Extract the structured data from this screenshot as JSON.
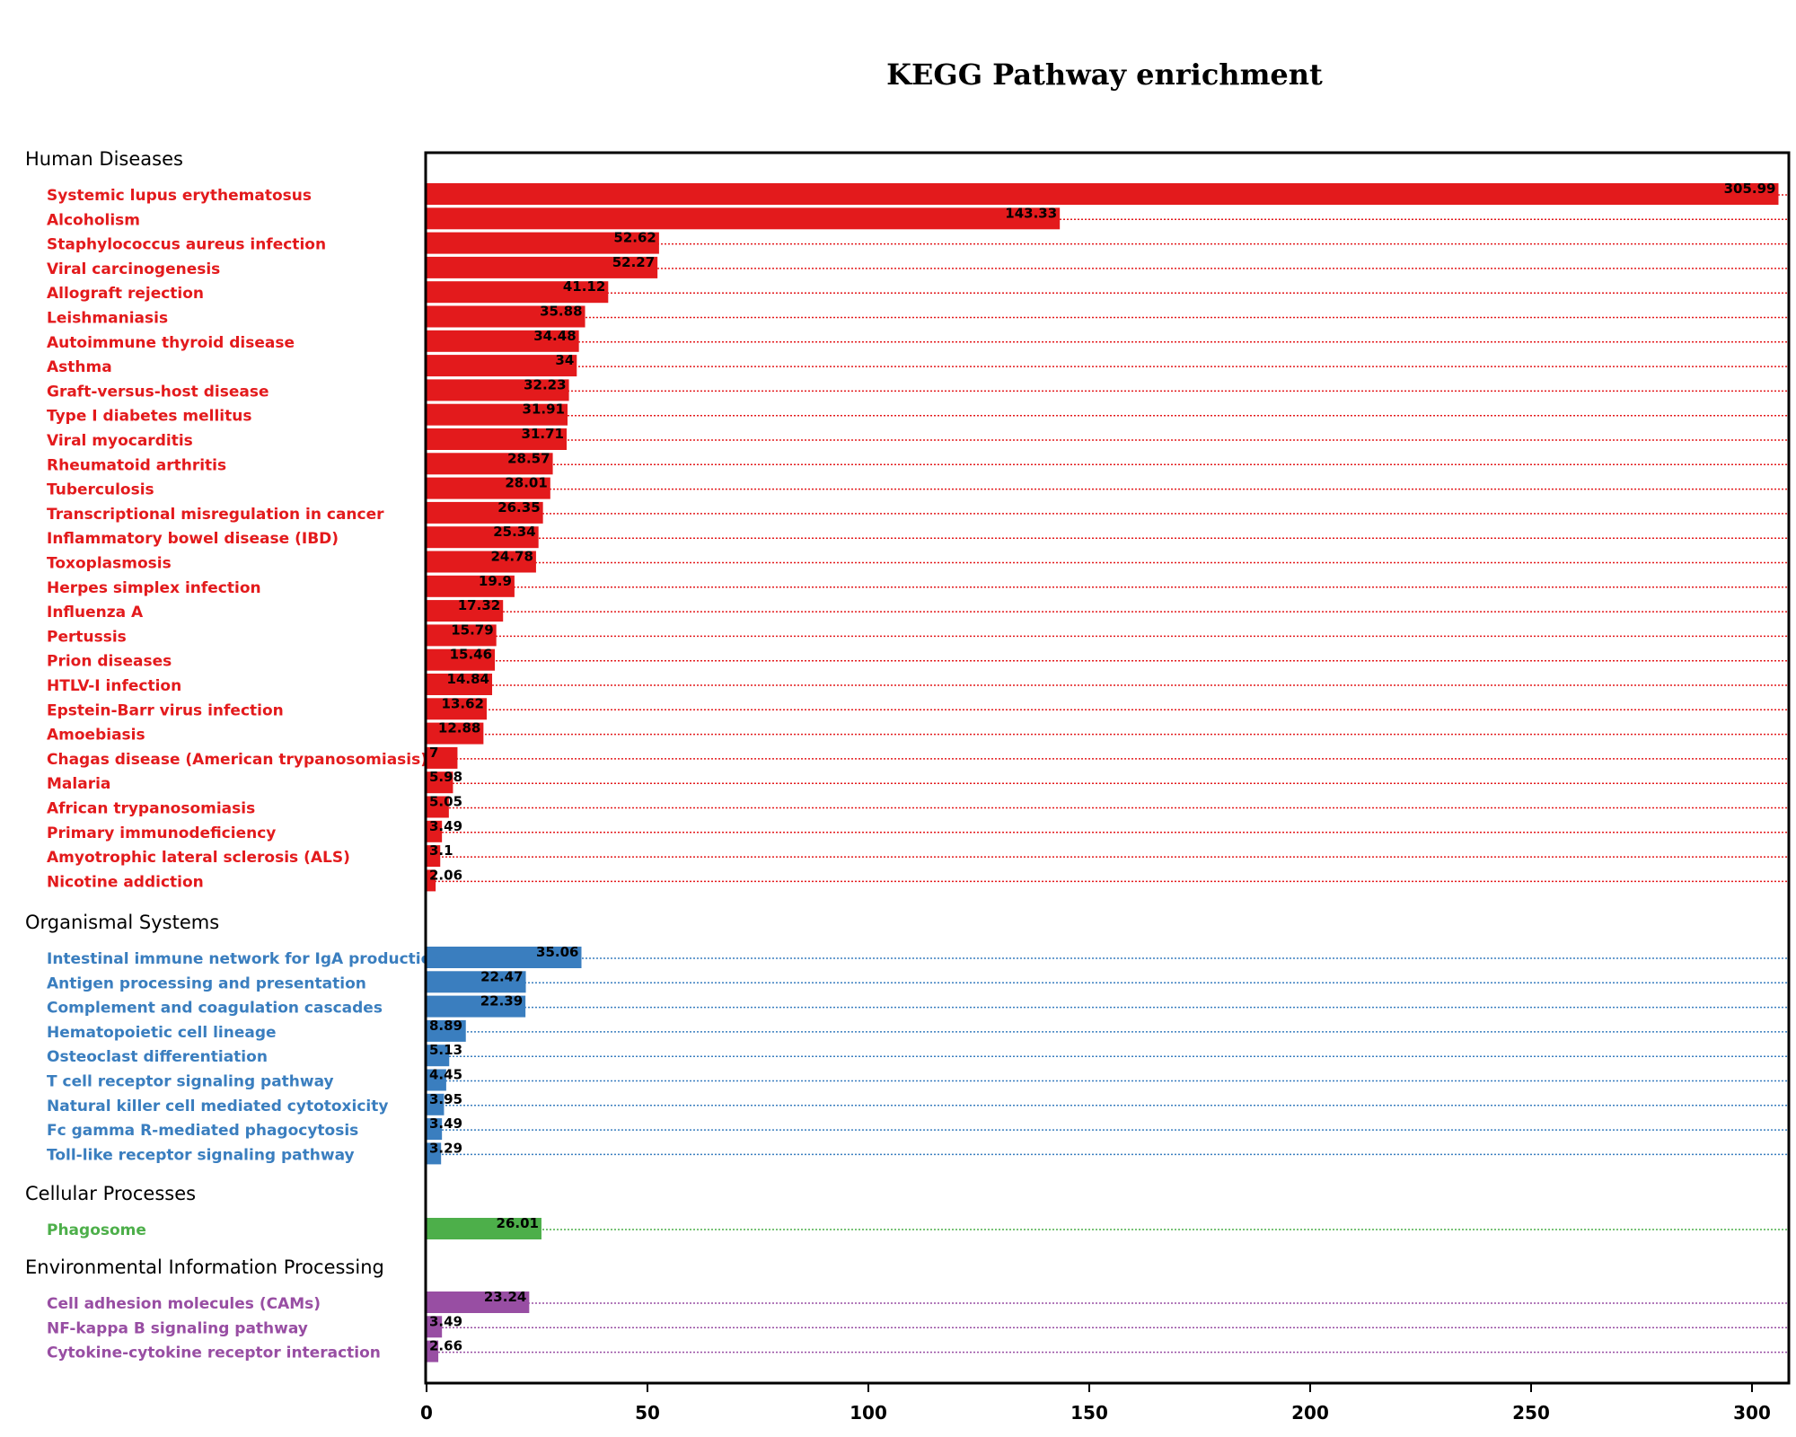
{
  "chart_data": {
    "type": "bar",
    "orientation": "horizontal",
    "title": "KEGG Pathway enrichment",
    "xlabel": "",
    "ylabel": "",
    "xlim": [
      0,
      300
    ],
    "x_ticks": [
      "0",
      "50",
      "100",
      "150",
      "200",
      "250",
      "300"
    ],
    "grid": "dotted line per row",
    "groups": [
      {
        "name": "Human Diseases",
        "color": "#e31a1c",
        "items": [
          {
            "label": "Systemic lupus erythematosus",
            "value": 305.99,
            "value_text": "305.99"
          },
          {
            "label": "Alcoholism",
            "value": 143.33,
            "value_text": "143.33"
          },
          {
            "label": "Staphylococcus aureus infection",
            "value": 52.62,
            "value_text": "52.62"
          },
          {
            "label": "Viral carcinogenesis",
            "value": 52.27,
            "value_text": "52.27"
          },
          {
            "label": "Allograft rejection",
            "value": 41.12,
            "value_text": "41.12"
          },
          {
            "label": "Leishmaniasis",
            "value": 35.88,
            "value_text": "35.88"
          },
          {
            "label": "Autoimmune thyroid disease",
            "value": 34.48,
            "value_text": "34.48"
          },
          {
            "label": "Asthma",
            "value": 34,
            "value_text": "34"
          },
          {
            "label": "Graft-versus-host disease",
            "value": 32.23,
            "value_text": "32.23"
          },
          {
            "label": "Type I diabetes mellitus",
            "value": 31.91,
            "value_text": "31.91"
          },
          {
            "label": "Viral myocarditis",
            "value": 31.71,
            "value_text": "31.71"
          },
          {
            "label": "Rheumatoid arthritis",
            "value": 28.57,
            "value_text": "28.57"
          },
          {
            "label": "Tuberculosis",
            "value": 28.01,
            "value_text": "28.01"
          },
          {
            "label": "Transcriptional misregulation in cancer",
            "value": 26.35,
            "value_text": "26.35"
          },
          {
            "label": "Inflammatory bowel disease (IBD)",
            "value": 25.34,
            "value_text": "25.34"
          },
          {
            "label": "Toxoplasmosis",
            "value": 24.78,
            "value_text": "24.78"
          },
          {
            "label": "Herpes simplex infection",
            "value": 19.9,
            "value_text": "19.9"
          },
          {
            "label": "Influenza A",
            "value": 17.32,
            "value_text": "17.32"
          },
          {
            "label": "Pertussis",
            "value": 15.79,
            "value_text": "15.79"
          },
          {
            "label": "Prion diseases",
            "value": 15.46,
            "value_text": "15.46"
          },
          {
            "label": "HTLV-I infection",
            "value": 14.84,
            "value_text": "14.84"
          },
          {
            "label": "Epstein-Barr virus infection",
            "value": 13.62,
            "value_text": "13.62"
          },
          {
            "label": "Amoebiasis",
            "value": 12.88,
            "value_text": "12.88"
          },
          {
            "label": "Chagas disease (American trypanosomiasis)",
            "value": 7,
            "value_text": "7"
          },
          {
            "label": "Malaria",
            "value": 5.98,
            "value_text": "5.98"
          },
          {
            "label": "African trypanosomiasis",
            "value": 5.05,
            "value_text": "5.05"
          },
          {
            "label": "Primary immunodeficiency",
            "value": 3.49,
            "value_text": "3.49"
          },
          {
            "label": "Amyotrophic lateral sclerosis (ALS)",
            "value": 3.1,
            "value_text": "3.1"
          },
          {
            "label": "Nicotine addiction",
            "value": 2.06,
            "value_text": "2.06"
          }
        ]
      },
      {
        "name": "Organismal Systems",
        "color": "#3a7ebf",
        "items": [
          {
            "label": "Intestinal immune network for IgA production",
            "value": 35.06,
            "value_text": "35.06"
          },
          {
            "label": "Antigen processing and presentation",
            "value": 22.47,
            "value_text": "22.47"
          },
          {
            "label": "Complement and coagulation cascades",
            "value": 22.39,
            "value_text": "22.39"
          },
          {
            "label": "Hematopoietic cell lineage",
            "value": 8.89,
            "value_text": "8.89"
          },
          {
            "label": "Osteoclast differentiation",
            "value": 5.13,
            "value_text": "5.13"
          },
          {
            "label": "T cell receptor signaling pathway",
            "value": 4.45,
            "value_text": "4.45"
          },
          {
            "label": "Natural killer cell mediated cytotoxicity",
            "value": 3.95,
            "value_text": "3.95"
          },
          {
            "label": "Fc gamma R-mediated phagocytosis",
            "value": 3.49,
            "value_text": "3.49"
          },
          {
            "label": "Toll-like receptor signaling pathway",
            "value": 3.29,
            "value_text": "3.29"
          }
        ]
      },
      {
        "name": "Cellular Processes",
        "color": "#4daf4a",
        "items": [
          {
            "label": "Phagosome",
            "value": 26.01,
            "value_text": "26.01"
          }
        ]
      },
      {
        "name": "Environmental Information Processing",
        "color": "#984ea3",
        "items": [
          {
            "label": "Cell adhesion molecules (CAMs)",
            "value": 23.24,
            "value_text": "23.24"
          },
          {
            "label": "NF-kappa B signaling pathway",
            "value": 3.49,
            "value_text": "3.49"
          },
          {
            "label": "Cytokine-cytokine receptor interaction",
            "value": 2.66,
            "value_text": "2.66"
          }
        ]
      }
    ]
  }
}
